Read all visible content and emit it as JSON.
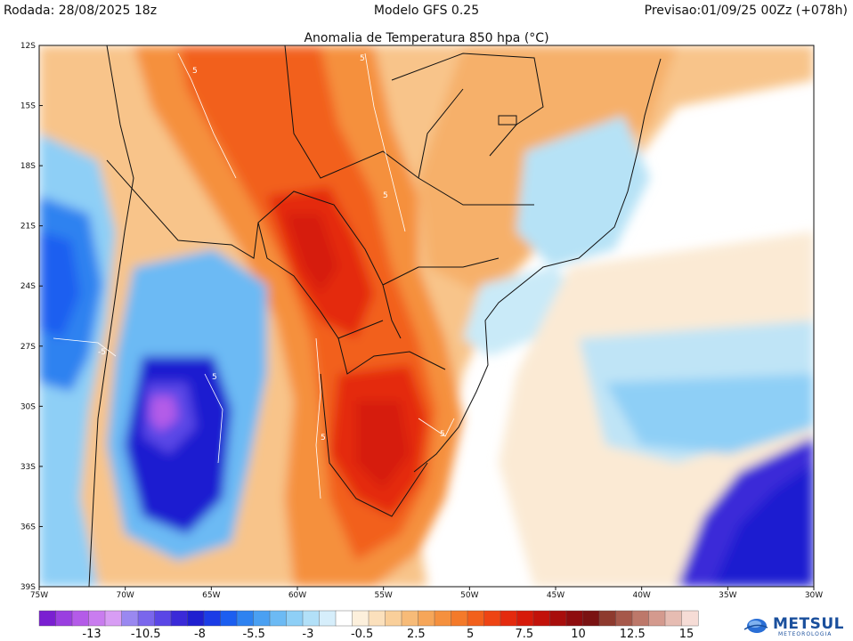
{
  "header": {
    "left": "Rodada: 28/08/2025 18z",
    "center": "Modelo GFS 0.25",
    "right": "Previsao:01/09/25 00Zz (+078h)"
  },
  "map": {
    "title": "Anomalia de Temperatura 850 hpa (°C)",
    "lat_labels": [
      "12S",
      "15S",
      "18S",
      "21S",
      "24S",
      "27S",
      "30S",
      "33S",
      "36S",
      "39S"
    ],
    "lon_labels": [
      "75W",
      "70W",
      "65W",
      "60W",
      "55W",
      "50W",
      "45W",
      "40W",
      "35W",
      "30W"
    ],
    "contour_labels": [
      "5",
      "5",
      "5",
      "-5",
      "5",
      "5",
      "5"
    ]
  },
  "colorbar": {
    "labels": [
      "-13",
      "-10.5",
      "-8",
      "-5.5",
      "-3",
      "-0.5",
      "2.5",
      "5",
      "7.5",
      "10",
      "12.5",
      "15"
    ],
    "colors": [
      "#7a1fd1",
      "#9a3fe0",
      "#b45be8",
      "#c97cef",
      "#d89df4",
      "#9a88f0",
      "#7a66ec",
      "#5a46e6",
      "#3a2ad8",
      "#1f1fd0",
      "#1b3ce6",
      "#1c5ef0",
      "#2e82f0",
      "#4aa0f2",
      "#6cbaf4",
      "#8ecff6",
      "#b2e0f8",
      "#d6eefb",
      "#ffffff",
      "#fdf0dc",
      "#fbe0bc",
      "#f9cf9a",
      "#f7bb78",
      "#f6a659",
      "#f5903e",
      "#f47a2a",
      "#f2601c",
      "#ee4414",
      "#e42a0e",
      "#d61a0a",
      "#c2120a",
      "#a80e0c",
      "#8e0c0e",
      "#7a1212",
      "#8e3a2e",
      "#a6584a",
      "#bd786a",
      "#d49a8e",
      "#e6bcb2",
      "#f6dcd6"
    ],
    "brand": "METSUL",
    "brand_sub": "METEOROLOGIA"
  }
}
